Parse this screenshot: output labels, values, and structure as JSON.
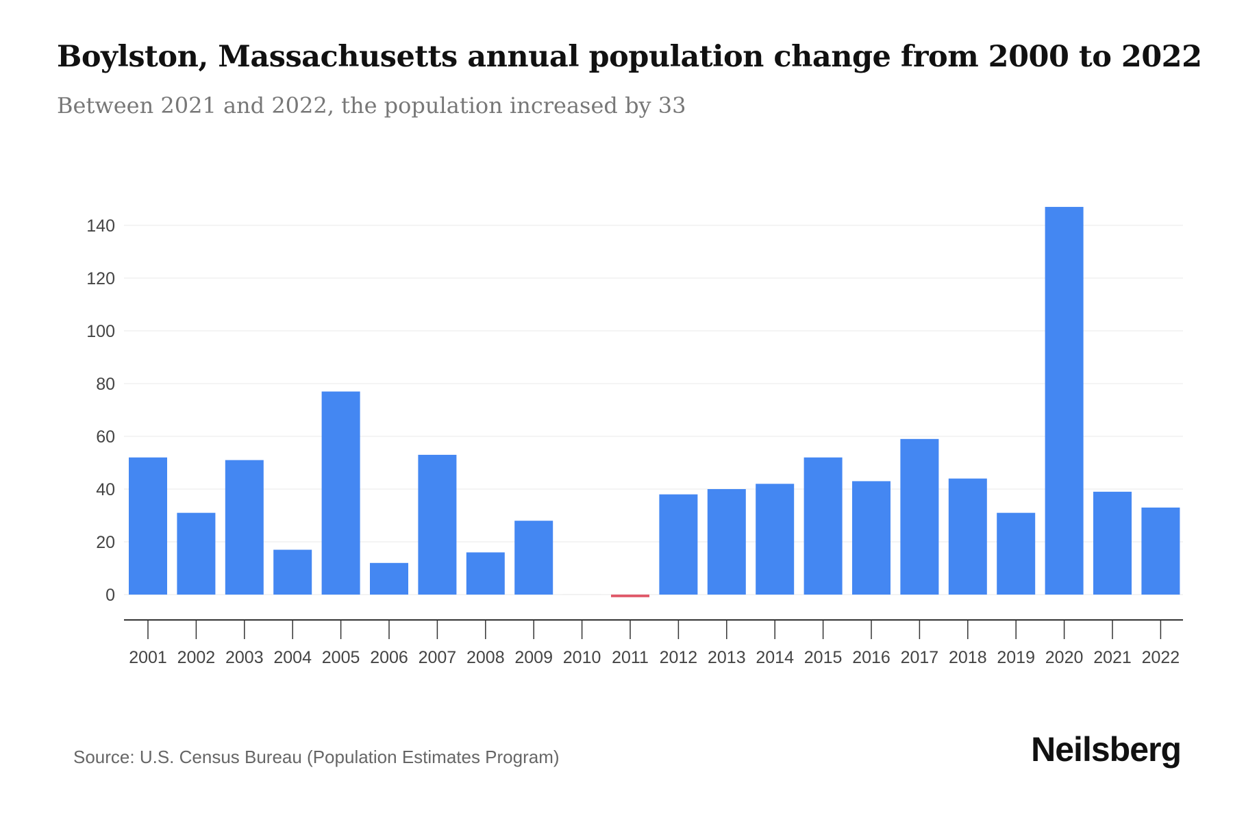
{
  "header": {
    "title": "Boylston, Massachusetts annual population change from 2000 to 2022",
    "subtitle": "Between 2021 and 2022, the population increased by 33"
  },
  "footer": {
    "source": "Source: U.S. Census Bureau (Population Estimates Program)",
    "brand": "Neilsberg"
  },
  "colors": {
    "positive": "#4487f2",
    "negative": "#e05a6a",
    "grid": "#eeeeee",
    "axis": "#333333",
    "tick_label": "#444444"
  },
  "chart_data": {
    "type": "bar",
    "title": "Boylston, Massachusetts annual population change from 2000 to 2022",
    "subtitle": "Between 2021 and 2022, the population increased by 33",
    "xlabel": "",
    "ylabel": "",
    "categories": [
      "2001",
      "2002",
      "2003",
      "2004",
      "2005",
      "2006",
      "2007",
      "2008",
      "2009",
      "2010",
      "2011",
      "2012",
      "2013",
      "2014",
      "2015",
      "2016",
      "2017",
      "2018",
      "2019",
      "2020",
      "2021",
      "2022"
    ],
    "values": [
      52,
      31,
      51,
      17,
      77,
      12,
      53,
      16,
      28,
      0,
      -1,
      38,
      40,
      42,
      52,
      43,
      59,
      44,
      31,
      147,
      39,
      33
    ],
    "yticks": [
      0,
      20,
      40,
      60,
      80,
      100,
      120,
      140
    ],
    "ytick_labels": [
      "0",
      "20",
      "40",
      "60",
      "80",
      "100",
      "120",
      "140"
    ],
    "ylim": [
      -9,
      150
    ],
    "grid": true,
    "legend": "none"
  }
}
